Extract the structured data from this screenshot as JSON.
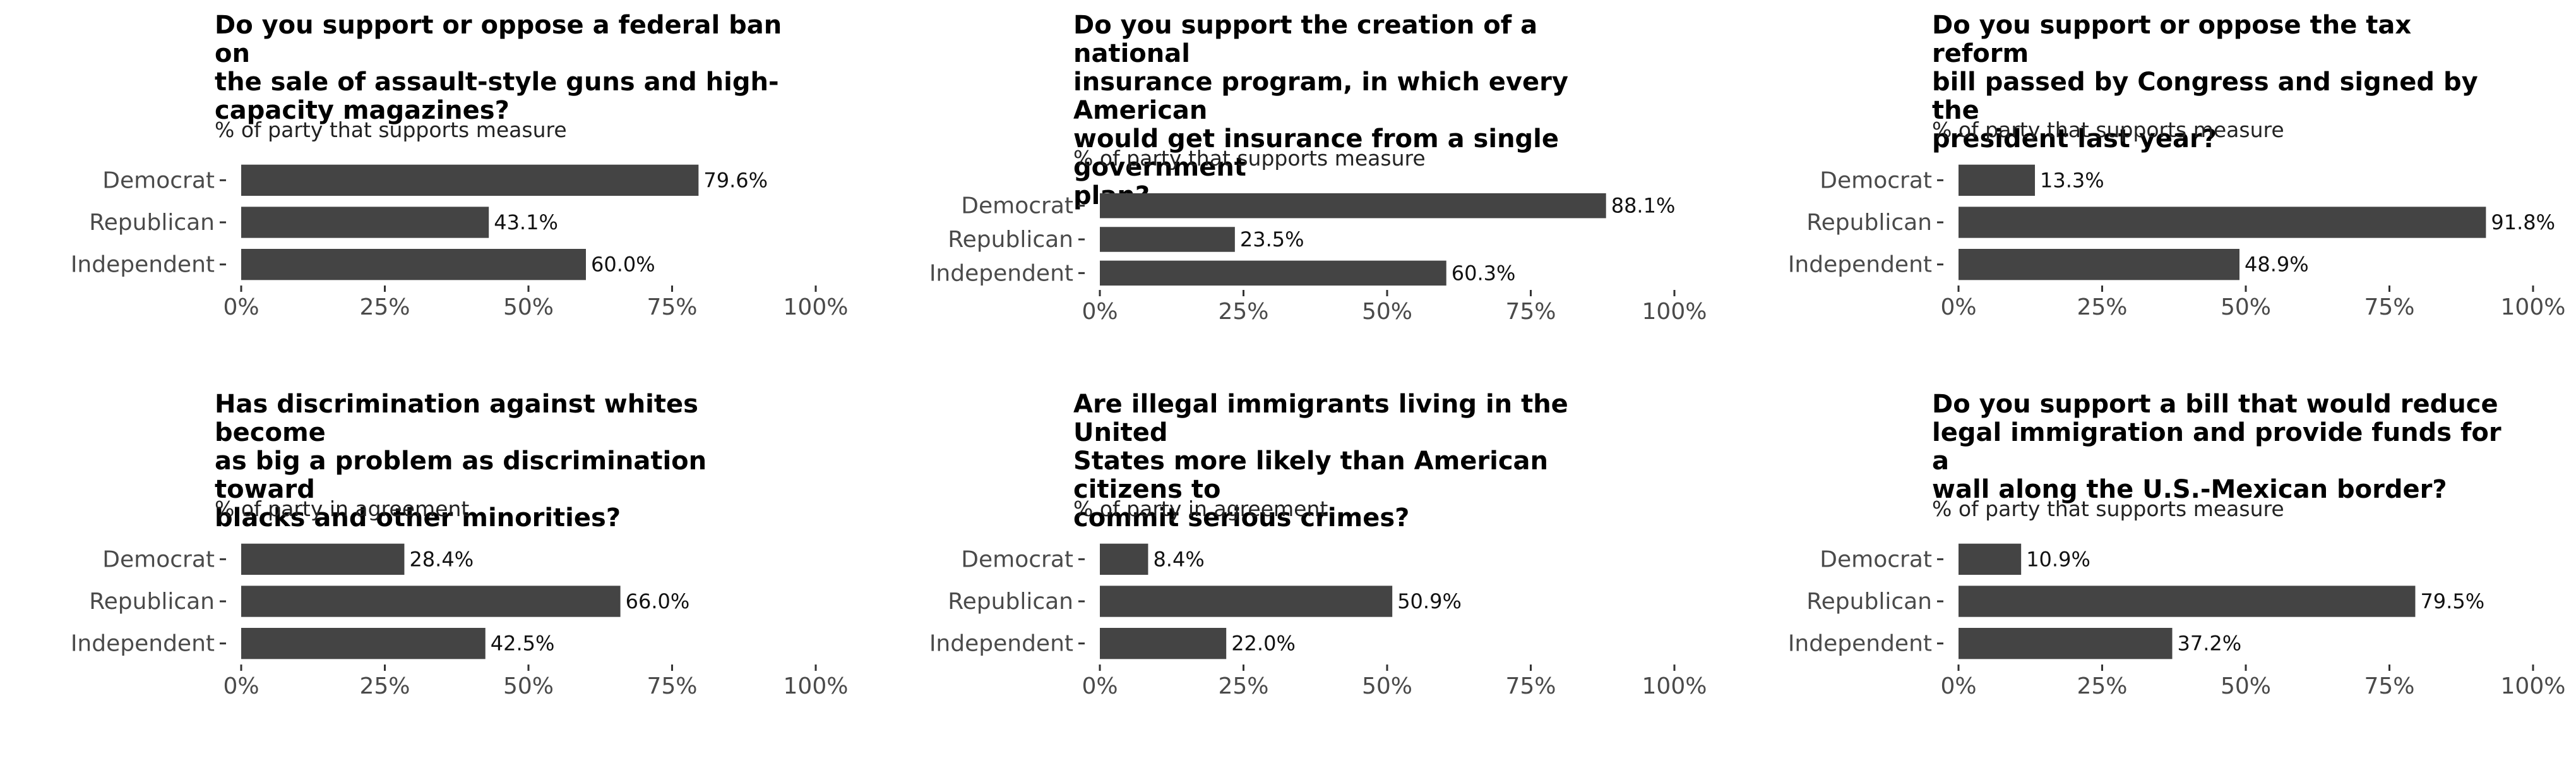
{
  "colors": {
    "bar": "#444444",
    "background": "#ffffff"
  },
  "chart_data": [
    {
      "type": "bar",
      "orientation": "horizontal",
      "title": "Do you support or oppose a federal ban on\nthe sale of assault-style guns and high-\ncapacity magazines?",
      "subtitle": "% of party that supports measure",
      "categories": [
        "Democrat",
        "Republican",
        "Independent"
      ],
      "values": [
        79.6,
        43.1,
        60.0
      ],
      "value_labels": [
        "79.6%",
        "43.1%",
        "60.0%"
      ],
      "xlim": [
        0,
        100
      ],
      "xticks": [
        "0%",
        "25%",
        "50%",
        "75%",
        "100%"
      ],
      "grid": false
    },
    {
      "type": "bar",
      "orientation": "horizontal",
      "title": "Do you support the creation of a national\ninsurance program, in which every American\nwould get insurance from a single government\nplan?",
      "subtitle": "% of party that supports measure",
      "categories": [
        "Democrat",
        "Republican",
        "Independent"
      ],
      "values": [
        88.1,
        23.5,
        60.3
      ],
      "value_labels": [
        "88.1%",
        "23.5%",
        "60.3%"
      ],
      "xlim": [
        0,
        100
      ],
      "xticks": [
        "0%",
        "25%",
        "50%",
        "75%",
        "100%"
      ],
      "grid": false
    },
    {
      "type": "bar",
      "orientation": "horizontal",
      "title": "Do you support or oppose the tax reform\nbill passed by Congress and signed by the\npresident last year?",
      "subtitle": "% of party that supports measure",
      "categories": [
        "Democrat",
        "Republican",
        "Independent"
      ],
      "values": [
        13.3,
        91.8,
        48.9
      ],
      "value_labels": [
        "13.3%",
        "91.8%",
        "48.9%"
      ],
      "xlim": [
        0,
        100
      ],
      "xticks": [
        "0%",
        "25%",
        "50%",
        "75%",
        "100%"
      ],
      "grid": false
    },
    {
      "type": "bar",
      "orientation": "horizontal",
      "title": "Has discrimination against whites become\nas big a problem as discrimination toward\nblacks and other minorities?",
      "subtitle": "% of party in agreement",
      "categories": [
        "Democrat",
        "Republican",
        "Independent"
      ],
      "values": [
        28.4,
        66.0,
        42.5
      ],
      "value_labels": [
        "28.4%",
        "66.0%",
        "42.5%"
      ],
      "xlim": [
        0,
        100
      ],
      "xticks": [
        "0%",
        "25%",
        "50%",
        "75%",
        "100%"
      ],
      "grid": false
    },
    {
      "type": "bar",
      "orientation": "horizontal",
      "title": "Are illegal immigrants living in the United\nStates more likely than American citizens to\ncommit serious crimes?",
      "subtitle": "% of party in agreement",
      "categories": [
        "Democrat",
        "Republican",
        "Independent"
      ],
      "values": [
        8.4,
        50.9,
        22.0
      ],
      "value_labels": [
        "8.4%",
        "50.9%",
        "22.0%"
      ],
      "xlim": [
        0,
        100
      ],
      "xticks": [
        "0%",
        "25%",
        "50%",
        "75%",
        "100%"
      ],
      "grid": false
    },
    {
      "type": "bar",
      "orientation": "horizontal",
      "title": "Do you support a bill that would reduce\nlegal immigration and provide funds for a\nwall along the U.S.-Mexican border?",
      "subtitle": "% of party that supports measure",
      "categories": [
        "Democrat",
        "Republican",
        "Independent"
      ],
      "values": [
        10.9,
        79.5,
        37.2
      ],
      "value_labels": [
        "10.9%",
        "79.5%",
        "37.2%"
      ],
      "xlim": [
        0,
        100
      ],
      "xticks": [
        "0%",
        "25%",
        "50%",
        "75%",
        "100%"
      ],
      "grid": false
    }
  ]
}
